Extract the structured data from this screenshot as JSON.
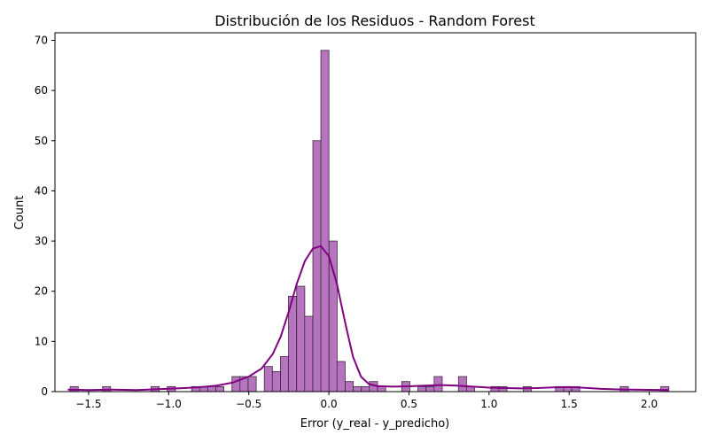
{
  "chart_data": {
    "type": "bar",
    "title": "Distribución de los Residuos - Random Forest",
    "xlabel": "Error (y_real - y_predicho)",
    "ylabel": "Count",
    "xlim": [
      -1.71,
      2.29
    ],
    "ylim": [
      0,
      71.5
    ],
    "xticks": [
      -1.5,
      -1.0,
      -0.5,
      0.0,
      0.5,
      1.0,
      1.5,
      2.0
    ],
    "xtick_labels": [
      "−1.5",
      "−1.0",
      "−0.5",
      "0.0",
      "0.5",
      "1.0",
      "1.5",
      "2.0"
    ],
    "yticks": [
      0,
      10,
      20,
      30,
      40,
      50,
      60,
      70
    ],
    "ytick_labels": [
      "0",
      "10",
      "20",
      "30",
      "40",
      "50",
      "60",
      "70"
    ],
    "grid": false,
    "bin_width": 0.0505,
    "bins": [
      {
        "x0": -1.615,
        "count": 1
      },
      {
        "x0": -1.413,
        "count": 1
      },
      {
        "x0": -1.11,
        "count": 1
      },
      {
        "x0": -1.009,
        "count": 1
      },
      {
        "x0": -0.857,
        "count": 1
      },
      {
        "x0": -0.807,
        "count": 1
      },
      {
        "x0": -0.756,
        "count": 1
      },
      {
        "x0": -0.706,
        "count": 1
      },
      {
        "x0": -0.605,
        "count": 3
      },
      {
        "x0": -0.555,
        "count": 3
      },
      {
        "x0": -0.504,
        "count": 3
      },
      {
        "x0": -0.403,
        "count": 5
      },
      {
        "x0": -0.353,
        "count": 4
      },
      {
        "x0": -0.302,
        "count": 7
      },
      {
        "x0": -0.252,
        "count": 19
      },
      {
        "x0": -0.201,
        "count": 21
      },
      {
        "x0": -0.151,
        "count": 15
      },
      {
        "x0": -0.1,
        "count": 50
      },
      {
        "x0": -0.05,
        "count": 68
      },
      {
        "x0": 0.001,
        "count": 30
      },
      {
        "x0": 0.051,
        "count": 6
      },
      {
        "x0": 0.102,
        "count": 2
      },
      {
        "x0": 0.152,
        "count": 1
      },
      {
        "x0": 0.203,
        "count": 1
      },
      {
        "x0": 0.253,
        "count": 2
      },
      {
        "x0": 0.304,
        "count": 1
      },
      {
        "x0": 0.455,
        "count": 2
      },
      {
        "x0": 0.556,
        "count": 1
      },
      {
        "x0": 0.607,
        "count": 1
      },
      {
        "x0": 0.657,
        "count": 3
      },
      {
        "x0": 0.809,
        "count": 3
      },
      {
        "x0": 0.859,
        "count": 1
      },
      {
        "x0": 1.011,
        "count": 1
      },
      {
        "x0": 1.061,
        "count": 1
      },
      {
        "x0": 1.213,
        "count": 1
      },
      {
        "x0": 1.415,
        "count": 1
      },
      {
        "x0": 1.465,
        "count": 1
      },
      {
        "x0": 1.516,
        "count": 1
      },
      {
        "x0": 1.819,
        "count": 1
      },
      {
        "x0": 2.072,
        "count": 1
      }
    ],
    "kde": [
      [
        -1.63,
        0.4
      ],
      [
        -1.5,
        0.3
      ],
      [
        -1.35,
        0.4
      ],
      [
        -1.2,
        0.3
      ],
      [
        -1.05,
        0.5
      ],
      [
        -0.9,
        0.7
      ],
      [
        -0.8,
        0.9
      ],
      [
        -0.7,
        1.2
      ],
      [
        -0.6,
        1.8
      ],
      [
        -0.5,
        3.0
      ],
      [
        -0.42,
        4.6
      ],
      [
        -0.35,
        7.5
      ],
      [
        -0.3,
        11.0
      ],
      [
        -0.25,
        16.0
      ],
      [
        -0.2,
        21.5
      ],
      [
        -0.15,
        26.0
      ],
      [
        -0.1,
        28.5
      ],
      [
        -0.05,
        29.0
      ],
      [
        0.0,
        27.0
      ],
      [
        0.05,
        21.5
      ],
      [
        0.1,
        14.0
      ],
      [
        0.15,
        7.0
      ],
      [
        0.2,
        3.0
      ],
      [
        0.25,
        1.5
      ],
      [
        0.3,
        1.1
      ],
      [
        0.4,
        1.0
      ],
      [
        0.5,
        1.05
      ],
      [
        0.6,
        1.2
      ],
      [
        0.7,
        1.3
      ],
      [
        0.8,
        1.2
      ],
      [
        0.9,
        1.0
      ],
      [
        1.0,
        0.8
      ],
      [
        1.1,
        0.7
      ],
      [
        1.2,
        0.65
      ],
      [
        1.3,
        0.7
      ],
      [
        1.4,
        0.85
      ],
      [
        1.5,
        0.9
      ],
      [
        1.6,
        0.75
      ],
      [
        1.7,
        0.55
      ],
      [
        1.8,
        0.45
      ],
      [
        1.9,
        0.4
      ],
      [
        2.0,
        0.35
      ],
      [
        2.12,
        0.3
      ]
    ],
    "colors": {
      "bar_fill": "#b574bd",
      "bar_edge": "#3a2a3c",
      "kde_line": "#800080",
      "axis": "#000000"
    }
  }
}
